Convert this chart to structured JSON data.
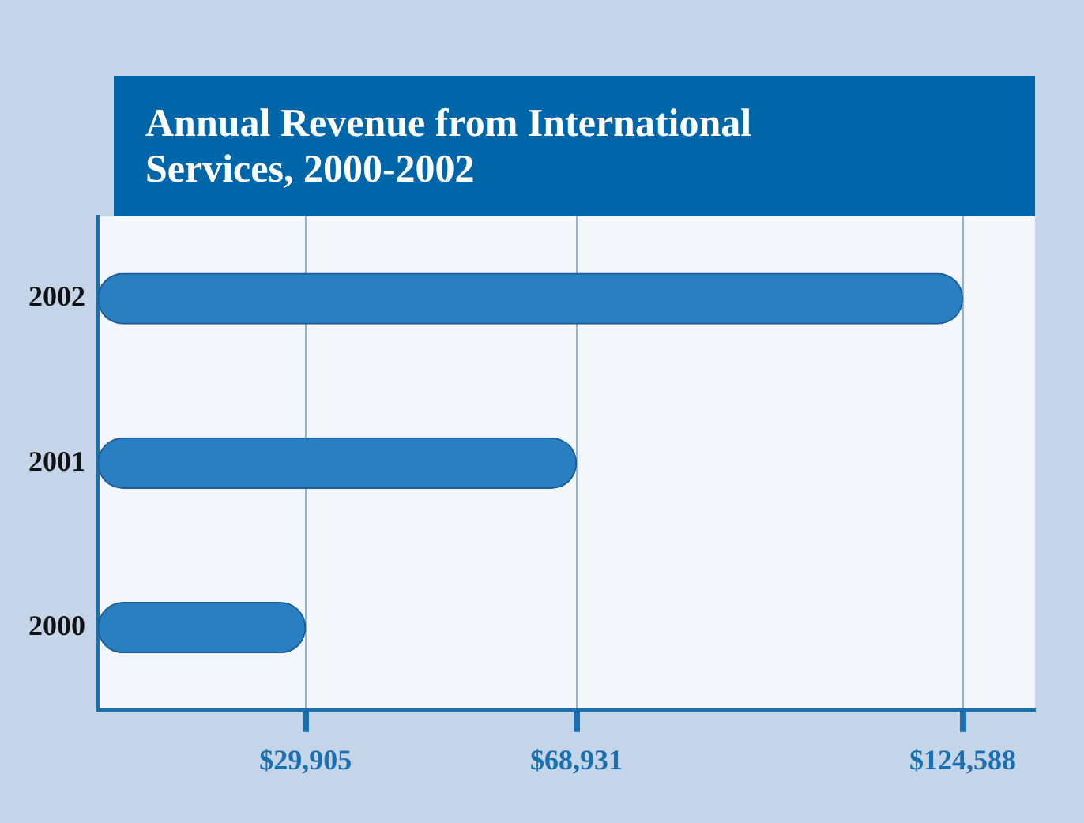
{
  "chart_data": {
    "type": "bar",
    "orientation": "horizontal",
    "title": "Annual Revenue from International Services, 2000-2002",
    "categories": [
      "2002",
      "2001",
      "2000"
    ],
    "values": [
      124588,
      68931,
      29905
    ],
    "color": "#2a7fc0",
    "xlim": [
      0,
      135000
    ],
    "xticks": [
      {
        "value": 29905,
        "label": "$29,905"
      },
      {
        "value": 68931,
        "label": "$68,931"
      },
      {
        "value": 124588,
        "label": "$124,588"
      }
    ],
    "grid": "x"
  }
}
